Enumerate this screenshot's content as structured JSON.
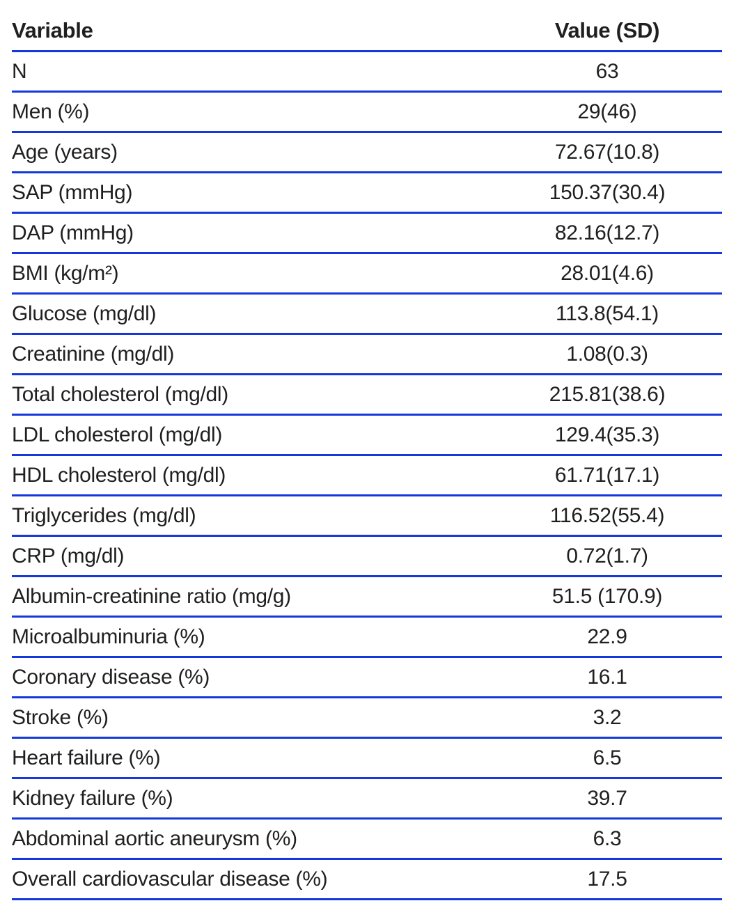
{
  "page": {
    "background_color": "#ffffff",
    "text_color": "#1f1f1f",
    "rule_color": "#1538dc"
  },
  "table": {
    "columns": [
      "Variable",
      "Value (SD)"
    ],
    "rows": [
      {
        "variable": "N",
        "value": "63"
      },
      {
        "variable": "Men (%)",
        "value": "29(46)"
      },
      {
        "variable": "Age (years)",
        "value": "72.67(10.8)"
      },
      {
        "variable": "SAP (mmHg)",
        "value": "150.37(30.4)"
      },
      {
        "variable": "DAP (mmHg)",
        "value": "82.16(12.7)"
      },
      {
        "variable": "BMI (kg/m²)",
        "value": "28.01(4.6)"
      },
      {
        "variable": "Glucose (mg/dl)",
        "value": "113.8(54.1)"
      },
      {
        "variable": "Creatinine (mg/dl)",
        "value": "1.08(0.3)"
      },
      {
        "variable": "Total cholesterol (mg/dl)",
        "value": "215.81(38.6)"
      },
      {
        "variable": "LDL cholesterol (mg/dl)",
        "value": "129.4(35.3)"
      },
      {
        "variable": "HDL cholesterol (mg/dl)",
        "value": "61.71(17.1)"
      },
      {
        "variable": "Triglycerides (mg/dl)",
        "value": "116.52(55.4)"
      },
      {
        "variable": "CRP (mg/dl)",
        "value": "0.72(1.7)"
      },
      {
        "variable": "Albumin-creatinine ratio (mg/g)",
        "value": "51.5 (170.9)"
      },
      {
        "variable": "Microalbuminuria (%)",
        "value": "22.9"
      },
      {
        "variable": "Coronary disease (%)",
        "value": "16.1"
      },
      {
        "variable": "Stroke (%)",
        "value": "3.2"
      },
      {
        "variable": "Heart failure (%)",
        "value": "6.5"
      },
      {
        "variable": "Kidney failure (%)",
        "value": "39.7"
      },
      {
        "variable": "Abdominal aortic aneurysm (%)",
        "value": "6.3"
      },
      {
        "variable": "Overall cardiovascular disease (%)",
        "value": "17.5"
      }
    ]
  }
}
